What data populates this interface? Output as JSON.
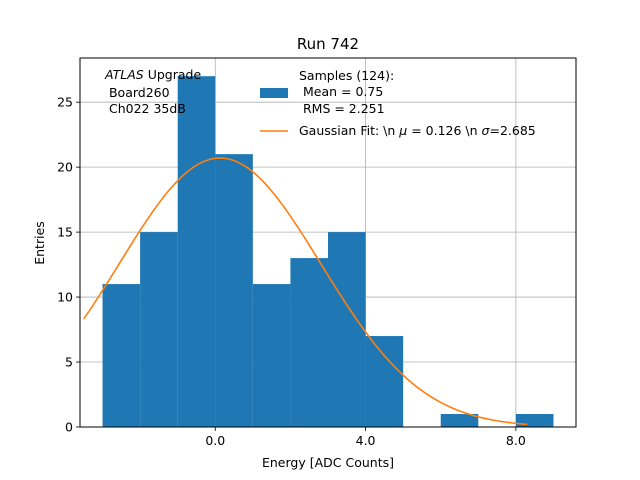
{
  "chart_data": {
    "type": "bar",
    "title": "Run 742",
    "xlabel": "Energy [ADC Counts]",
    "ylabel": "Entries",
    "xlim": [
      -3.6,
      9.6
    ],
    "ylim": [
      0,
      28.4
    ],
    "grid": true,
    "x_ticks": [
      0,
      4,
      8
    ],
    "x_tick_labels": [
      "0.0",
      "4.0",
      "8.0"
    ],
    "y_ticks": [
      0,
      5,
      10,
      15,
      20,
      25
    ],
    "y_tick_labels": [
      "0",
      "5",
      "10",
      "15",
      "20",
      "25"
    ],
    "histogram": {
      "name": "Samples (124):\n Mean = 0.75\n RMS = 2.251",
      "color": "#1f77b4",
      "bin_edges": [
        -3,
        -2,
        -1,
        0,
        1,
        2,
        3,
        4,
        5,
        6,
        7,
        8,
        9
      ],
      "counts": [
        11,
        15,
        27,
        21,
        11,
        13,
        15,
        7,
        0,
        1,
        0,
        1
      ]
    },
    "fit": {
      "name": "Gaussian Fit: \\n $\\mu$ = 0.126 \\n $\\sigma$=2.685",
      "color": "#ff7f0e",
      "amplitude": 20.7,
      "mu": 0.126,
      "sigma": 2.685,
      "x_range": [
        -3.5,
        8.3
      ]
    },
    "legend": {
      "position": "top-right",
      "entries": [
        {
          "lines": [
            "Samples (124):",
            " Mean = 0.75",
            " RMS = 2.251"
          ],
          "marker": "patch",
          "color": "#1f77b4"
        },
        {
          "text_before": "Gaussian Fit: \\n ",
          "mu_symbol": "μ",
          "mu_text": " = 0.126 \\n ",
          "sigma_symbol": "σ",
          "sigma_text": "=2.685",
          "marker": "line",
          "color": "#ff7f0e"
        }
      ]
    },
    "annotation": {
      "atlas": "ATLAS",
      "upgrade": " Upgrade",
      "line2": "Board260",
      "line3": "Ch022 35dB"
    }
  }
}
